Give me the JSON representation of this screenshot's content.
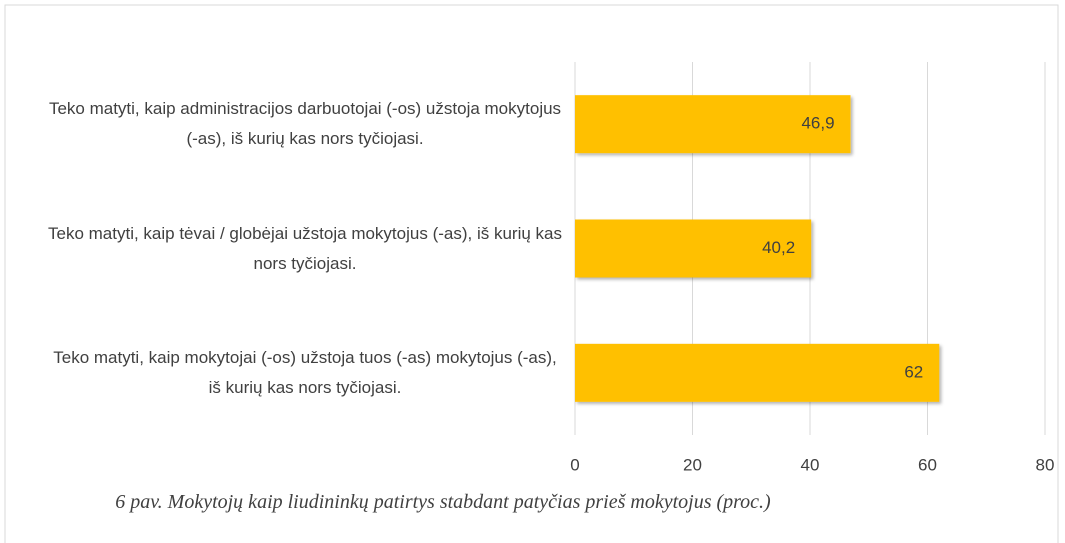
{
  "chart_data": {
    "type": "bar",
    "orientation": "horizontal",
    "caption": "6 pav. Mokytojų kaip liudininkų patirtys stabdant patyčias prieš mokytojus (proc.)",
    "categories": [
      "Teko matyti, kaip administracijos darbuotojai (-os) užstoja mokytojus (-as), iš kurių kas nors tyčiojasi.",
      "Teko matyti, kaip tėvai / globėjai užstoja mokytojus (-as), iš kurių kas nors tyčiojasi.",
      "Teko matyti, kaip mokytojai (-os) užstoja tuos (-as) mokytojus (-as), iš kurių kas nors tyčiojasi."
    ],
    "values": [
      46.9,
      40.2,
      62
    ],
    "value_labels": [
      "46,9",
      "40,2",
      "62"
    ],
    "color": "#FFC000",
    "xlim": [
      0,
      80
    ],
    "xticks": [
      0,
      20,
      40,
      60,
      80
    ],
    "grid": true
  }
}
